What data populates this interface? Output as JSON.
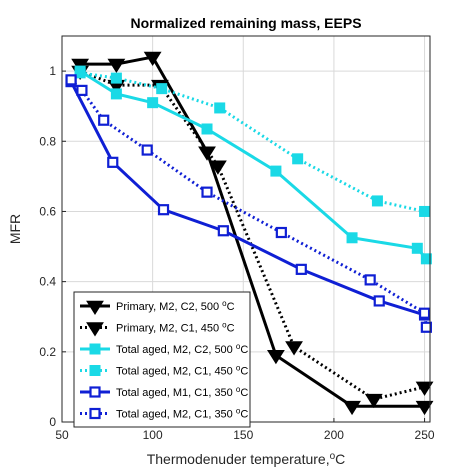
{
  "chart_data": {
    "type": "line",
    "title": "Normalized remaining mass, EEPS",
    "xlabel": "Thermodenuder temperature,",
    "xlabel_unit": "C",
    "xlabel_unit_sup": "o",
    "ylabel": "MFR",
    "xlim": [
      50,
      253
    ],
    "ylim": [
      0,
      1.1
    ],
    "xticks": [
      50,
      100,
      150,
      200,
      250
    ],
    "yticks": [
      0,
      0.2,
      0.4,
      0.6,
      0.8,
      1
    ],
    "ytick_labels": [
      "0",
      "0.2",
      "0.4",
      "0.6",
      "0.8",
      "1"
    ],
    "grid": true,
    "box": true,
    "legend_position": "bottom-left",
    "series": [
      {
        "name": "Primary, M2, C2, 500 ",
        "unit_sup": "o",
        "unit": "C",
        "color": "#000000",
        "line_style": "solid",
        "marker": "triangle-down",
        "marker_fill": true,
        "x": [
          60,
          80,
          100,
          130,
          168,
          210,
          250
        ],
        "y": [
          1.02,
          1.02,
          1.04,
          0.77,
          0.19,
          0.045,
          0.045
        ]
      },
      {
        "name": "Primary, M2, C1, 450 ",
        "unit_sup": "o",
        "unit": "C",
        "color": "#000000",
        "line_style": "dotted",
        "marker": "triangle-down",
        "marker_fill": true,
        "x": [
          60,
          80,
          104,
          136,
          178,
          222,
          250
        ],
        "y": [
          1.0,
          0.96,
          0.96,
          0.73,
          0.215,
          0.065,
          0.1
        ]
      },
      {
        "name": "Total aged, M2, C2, 500 ",
        "unit_sup": "o",
        "unit": "C",
        "color": "#1ad9e6",
        "line_style": "solid",
        "marker": "square",
        "marker_fill": true,
        "x": [
          60,
          80,
          100,
          130,
          168,
          210,
          246,
          251
        ],
        "y": [
          1.0,
          0.935,
          0.91,
          0.835,
          0.715,
          0.525,
          0.495,
          0.465
        ]
      },
      {
        "name": "Total aged, M2, C1, 450 ",
        "unit_sup": "o",
        "unit": "C",
        "color": "#1ad9e6",
        "line_style": "dotted",
        "marker": "square",
        "marker_fill": true,
        "x": [
          60,
          80,
          105,
          137,
          180,
          224,
          250
        ],
        "y": [
          0.995,
          0.98,
          0.95,
          0.895,
          0.75,
          0.63,
          0.6
        ]
      },
      {
        "name": "Total aged, M1, C1, 350 ",
        "unit_sup": "o",
        "unit": "C",
        "color": "#0f1fd4",
        "line_style": "solid",
        "marker": "square",
        "marker_fill": false,
        "x": [
          55,
          78,
          106,
          139,
          182,
          225,
          250
        ],
        "y": [
          0.97,
          0.74,
          0.605,
          0.545,
          0.435,
          0.345,
          0.305
        ]
      },
      {
        "name": "Total aged, M2, C1, 350 ",
        "unit_sup": "o",
        "unit": "C",
        "color": "#0f1fd4",
        "line_style": "dotted",
        "marker": "square",
        "marker_fill": false,
        "x": [
          55,
          61,
          73,
          97,
          130,
          171,
          220,
          250,
          251
        ],
        "y": [
          0.975,
          0.945,
          0.86,
          0.775,
          0.655,
          0.54,
          0.405,
          0.31,
          0.27
        ]
      }
    ]
  }
}
